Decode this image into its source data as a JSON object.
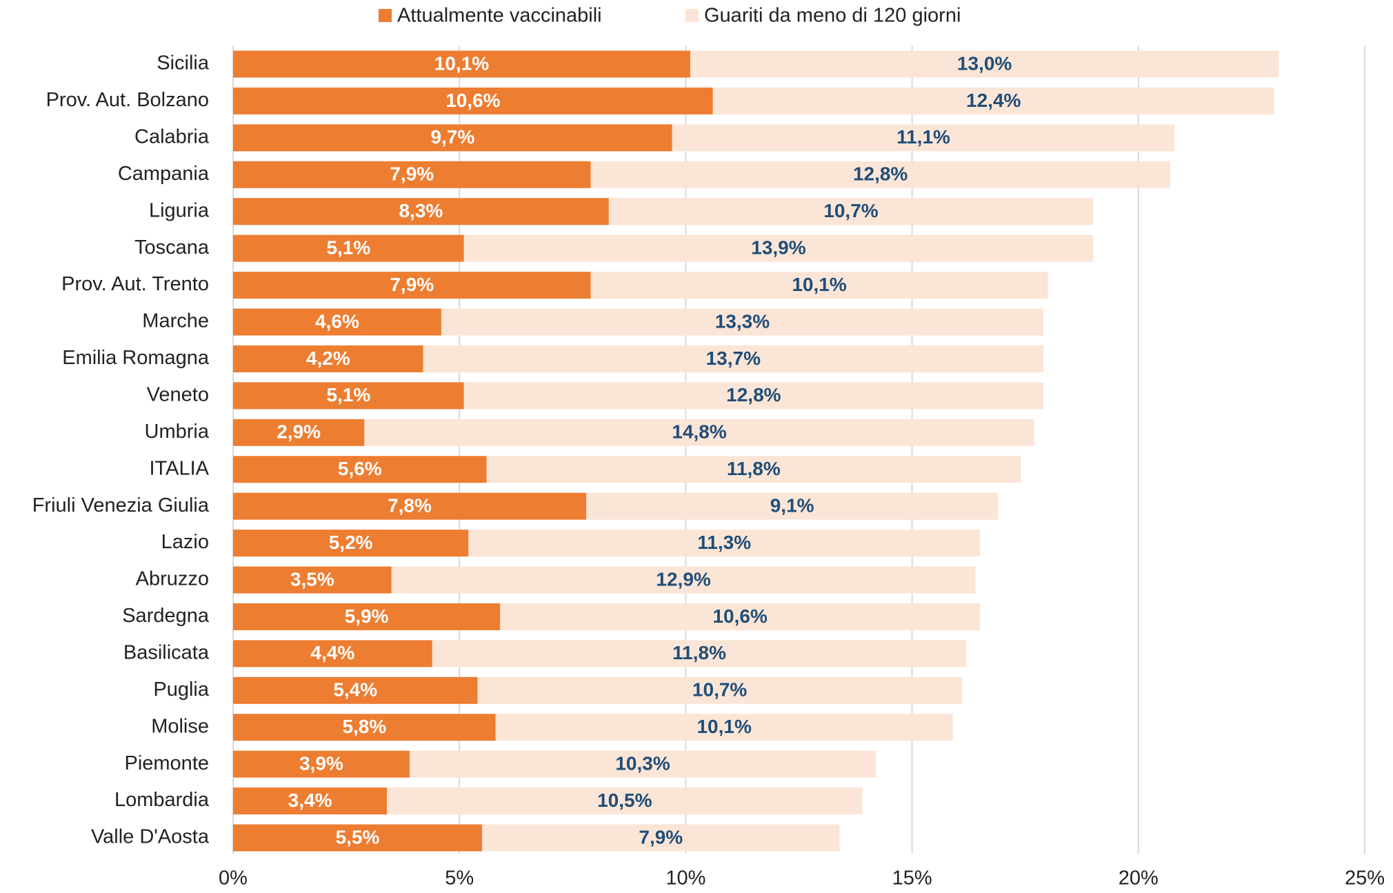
{
  "chart_data": {
    "type": "stacked_bar_horizontal",
    "categories": [
      "Sicilia",
      "Prov. Aut. Bolzano",
      "Calabria",
      "Campania",
      "Liguria",
      "Toscana",
      "Prov. Aut. Trento",
      "Marche",
      "Emilia Romagna",
      "Veneto",
      "Umbria",
      "ITALIA",
      "Friuli Venezia Giulia",
      "Lazio",
      "Abruzzo",
      "Sardegna",
      "Basilicata",
      "Puglia",
      "Molise",
      "Piemonte",
      "Lombardia",
      "Valle D'Aosta"
    ],
    "series": [
      {
        "name": "Attualmente vaccinabili",
        "color": "#ed7d31",
        "values": [
          10.1,
          10.6,
          9.7,
          7.9,
          8.3,
          5.1,
          7.9,
          4.6,
          4.2,
          5.1,
          2.9,
          5.6,
          7.8,
          5.2,
          3.5,
          5.9,
          4.4,
          5.4,
          5.8,
          3.9,
          3.4,
          5.5
        ],
        "value_labels": [
          "10,1%",
          "10,6%",
          "9,7%",
          "7,9%",
          "8,3%",
          "5,1%",
          "7,9%",
          "4,6%",
          "4,2%",
          "5,1%",
          "2,9%",
          "5,6%",
          "7,8%",
          "5,2%",
          "3,5%",
          "5,9%",
          "4,4%",
          "5,4%",
          "5,8%",
          "3,9%",
          "3,4%",
          "5,5%"
        ]
      },
      {
        "name": "Guariti da meno di 120 giorni",
        "color": "#fbe5d6",
        "values": [
          13.0,
          12.4,
          11.1,
          12.8,
          10.7,
          13.9,
          10.1,
          13.3,
          13.7,
          12.8,
          14.8,
          11.8,
          9.1,
          11.3,
          12.9,
          10.6,
          11.8,
          10.7,
          10.1,
          10.3,
          10.5,
          7.9
        ],
        "value_labels": [
          "13,0%",
          "12,4%",
          "11,1%",
          "12,8%",
          "10,7%",
          "13,9%",
          "10,1%",
          "13,3%",
          "13,7%",
          "12,8%",
          "14,8%",
          "11,8%",
          "9,1%",
          "11,3%",
          "12,9%",
          "10,6%",
          "11,8%",
          "10,7%",
          "10,1%",
          "10,3%",
          "10,5%",
          "7,9%"
        ]
      }
    ],
    "xlim": [
      0,
      25
    ],
    "xticks": [
      {
        "value": 0,
        "label": "0%"
      },
      {
        "value": 5,
        "label": "5%"
      },
      {
        "value": 10,
        "label": "10%"
      },
      {
        "value": 15,
        "label": "15%"
      },
      {
        "value": 20,
        "label": "20%"
      },
      {
        "value": 25,
        "label": "25%"
      }
    ],
    "grid": true,
    "legend": "top"
  }
}
